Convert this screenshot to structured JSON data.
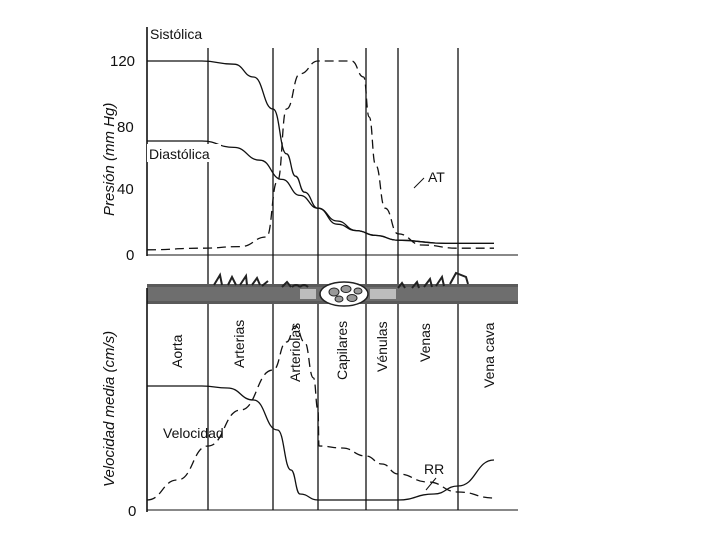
{
  "chart_data": [
    {
      "type": "line",
      "panel": "pressure",
      "ylabel": "Presión (mm Hg)",
      "yticks": [
        "0",
        "40",
        "80",
        "120"
      ],
      "ylim": [
        0,
        135
      ],
      "x_segments": [
        "Aorta",
        "Arterias",
        "Arteriolas",
        "Capilares",
        "Vénulas",
        "Venas",
        "Vena cava"
      ],
      "series": [
        {
          "name": "Sistólica",
          "style": "solid",
          "points": [
            [
              0,
              120
            ],
            [
              0.9,
              120
            ],
            [
              1.4,
              118
            ],
            [
              1.7,
              110
            ],
            [
              2.0,
              90
            ],
            [
              2.3,
              62
            ],
            [
              2.5,
              48
            ],
            [
              2.7,
              38
            ],
            [
              3.0,
              28
            ],
            [
              3.4,
              18
            ],
            [
              3.8,
              14
            ],
            [
              4.3,
              11
            ],
            [
              5.0,
              8
            ],
            [
              5.8,
              6
            ],
            [
              6.6,
              6
            ]
          ]
        },
        {
          "name": "Diastólica",
          "style": "solid",
          "points": [
            [
              0,
              70
            ],
            [
              0.9,
              70
            ],
            [
              1.4,
              66
            ],
            [
              1.8,
              58
            ],
            [
              2.2,
              46
            ],
            [
              2.6,
              36
            ],
            [
              3.0,
              28
            ],
            [
              3.4,
              20
            ],
            [
              3.8,
              14
            ],
            [
              4.3,
              11
            ],
            [
              5.0,
              8
            ],
            [
              5.8,
              6
            ],
            [
              6.6,
              6
            ]
          ]
        },
        {
          "name": "AT",
          "style": "dashed",
          "points": [
            [
              0,
              2
            ],
            [
              0.9,
              3
            ],
            [
              1.5,
              4
            ],
            [
              1.9,
              10
            ],
            [
              2.1,
              45
            ],
            [
              2.3,
              90
            ],
            [
              2.6,
              112
            ],
            [
              3.0,
              120
            ],
            [
              3.7,
              120
            ],
            [
              3.95,
              110
            ],
            [
              4.1,
              85
            ],
            [
              4.3,
              55
            ],
            [
              4.6,
              28
            ],
            [
              5.0,
              12
            ],
            [
              5.4,
              5
            ],
            [
              6.0,
              3
            ],
            [
              6.6,
              3
            ]
          ]
        }
      ]
    },
    {
      "type": "line",
      "panel": "velocity",
      "ylabel": "Velocidad media (cm/s)",
      "yticks": [
        "0"
      ],
      "ylim": [
        0,
        1
      ],
      "x_segments": [
        "Aorta",
        "Arterias",
        "Arteriolas",
        "Capilares",
        "Vénulas",
        "Venas",
        "Vena cava"
      ],
      "series": [
        {
          "name": "Velocidad",
          "style": "solid",
          "points": [
            [
              0,
              0.62
            ],
            [
              0.9,
              0.62
            ],
            [
              1.3,
              0.61
            ],
            [
              1.7,
              0.55
            ],
            [
              2.1,
              0.4
            ],
            [
              2.4,
              0.2
            ],
            [
              2.6,
              0.08
            ],
            [
              3.0,
              0.05
            ],
            [
              4.0,
              0.05
            ],
            [
              5.0,
              0.05
            ],
            [
              5.6,
              0.08
            ],
            [
              6.0,
              0.12
            ],
            [
              6.6,
              0.25
            ]
          ]
        },
        {
          "name": "RR",
          "style": "dashed",
          "points": [
            [
              0,
              0.05
            ],
            [
              0.5,
              0.15
            ],
            [
              1.0,
              0.32
            ],
            [
              1.5,
              0.5
            ],
            [
              2.0,
              0.7
            ],
            [
              2.3,
              0.84
            ],
            [
              2.5,
              0.92
            ],
            [
              2.7,
              0.84
            ],
            [
              2.9,
              0.66
            ],
            [
              3.0,
              0.5
            ],
            [
              3.02,
              0.32
            ],
            [
              3.5,
              0.31
            ],
            [
              4.0,
              0.27
            ],
            [
              4.5,
              0.23
            ],
            [
              5.0,
              0.18
            ],
            [
              5.5,
              0.14
            ],
            [
              6.0,
              0.09
            ],
            [
              6.6,
              0.06
            ]
          ]
        }
      ]
    }
  ],
  "labels": {
    "sistolica": "Sistólica",
    "diastolica": "Diastólica",
    "at": "AT",
    "velocidad": "Velocidad",
    "rr": "RR"
  },
  "colors": {
    "ink": "#111111",
    "vessel": "#555555"
  }
}
